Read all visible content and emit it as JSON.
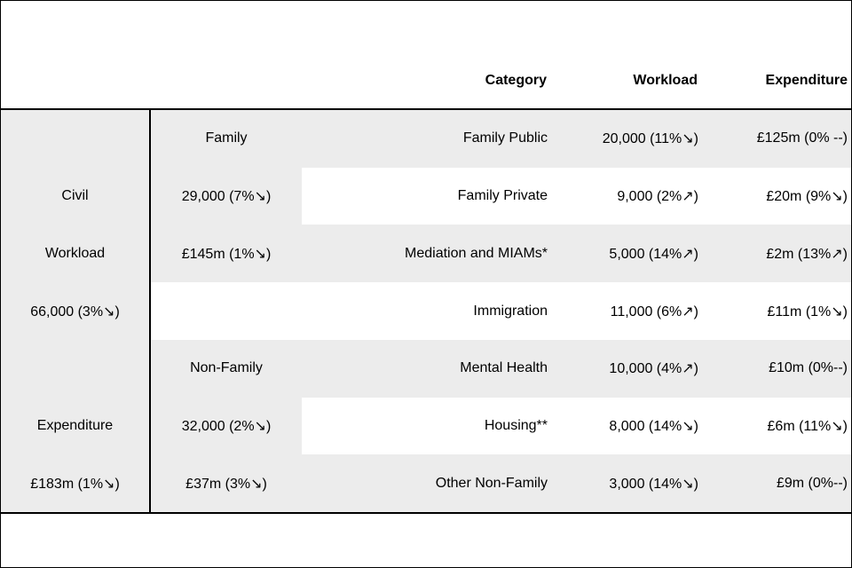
{
  "colors": {
    "row_shade": "#ececec",
    "text": "#000000",
    "line": "#000000",
    "background": "#ffffff"
  },
  "headers": {
    "category": "Category",
    "workload": "Workload",
    "expenditure": "Expenditure"
  },
  "rows": [
    {
      "left": "",
      "group": "Family",
      "category": "Family Public",
      "workload": "20,000 (11%↘)",
      "expenditure": "£125m (0% --)"
    },
    {
      "left": "Civil",
      "group": "29,000 (7%↘)",
      "category": "Family Private",
      "workload": "9,000 (2%↗)",
      "expenditure": "£20m (9%↘)"
    },
    {
      "left": "Workload",
      "group": "£145m (1%↘)",
      "category": "Mediation and MIAMs*",
      "workload": "5,000 (14%↗)",
      "expenditure": "£2m (13%↗)"
    },
    {
      "left": "66,000 (3%↘)",
      "group": "",
      "category": "Immigration",
      "workload": "11,000 (6%↗)",
      "expenditure": "£11m (1%↘)"
    },
    {
      "left": "",
      "group": "Non-Family",
      "category": "Mental Health",
      "workload": "10,000 (4%↗)",
      "expenditure": "£10m (0%--)"
    },
    {
      "left": "Expenditure",
      "group": "32,000 (2%↘)",
      "category": "Housing**",
      "workload": "8,000 (14%↘)",
      "expenditure": "£6m (11%↘)"
    },
    {
      "left": "£183m (1%↘)",
      "group": "£37m (3%↘)",
      "category": "Other Non-Family",
      "workload": "3,000 (14%↘)",
      "expenditure": "£9m (0%--)"
    }
  ]
}
